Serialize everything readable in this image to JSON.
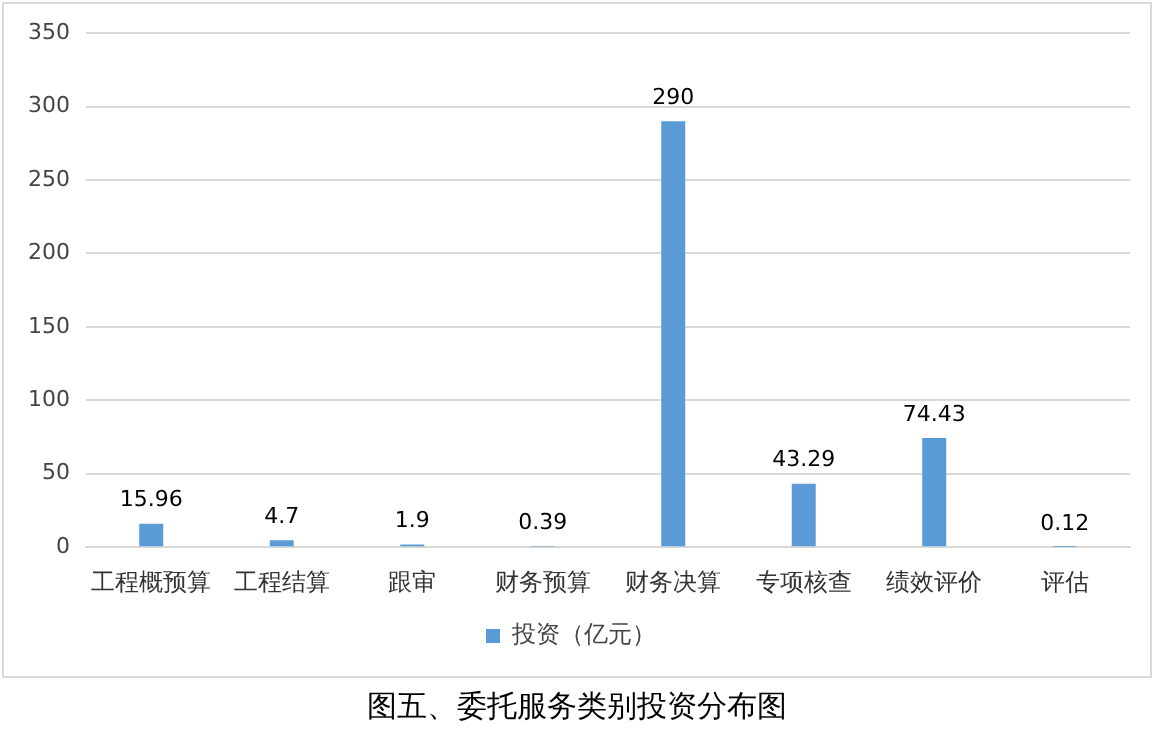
{
  "chart_data": {
    "type": "bar",
    "title": "图五、委托服务类别投资分布图",
    "categories": [
      "工程概预算",
      "工程结算",
      "跟审",
      "财务预算",
      "财务决算",
      "专项核查",
      "绩效评价",
      "评估"
    ],
    "series": [
      {
        "name": "投资（亿元）",
        "color": "#5b9bd5",
        "values": [
          15.96,
          4.7,
          1.9,
          0.39,
          290,
          43.29,
          74.43,
          0.12
        ]
      }
    ],
    "ylim": [
      0,
      350
    ],
    "yticks": [
      0,
      50,
      100,
      150,
      200,
      250,
      300,
      350
    ],
    "grid": "y",
    "legend": "bottom",
    "data_labels": true
  }
}
